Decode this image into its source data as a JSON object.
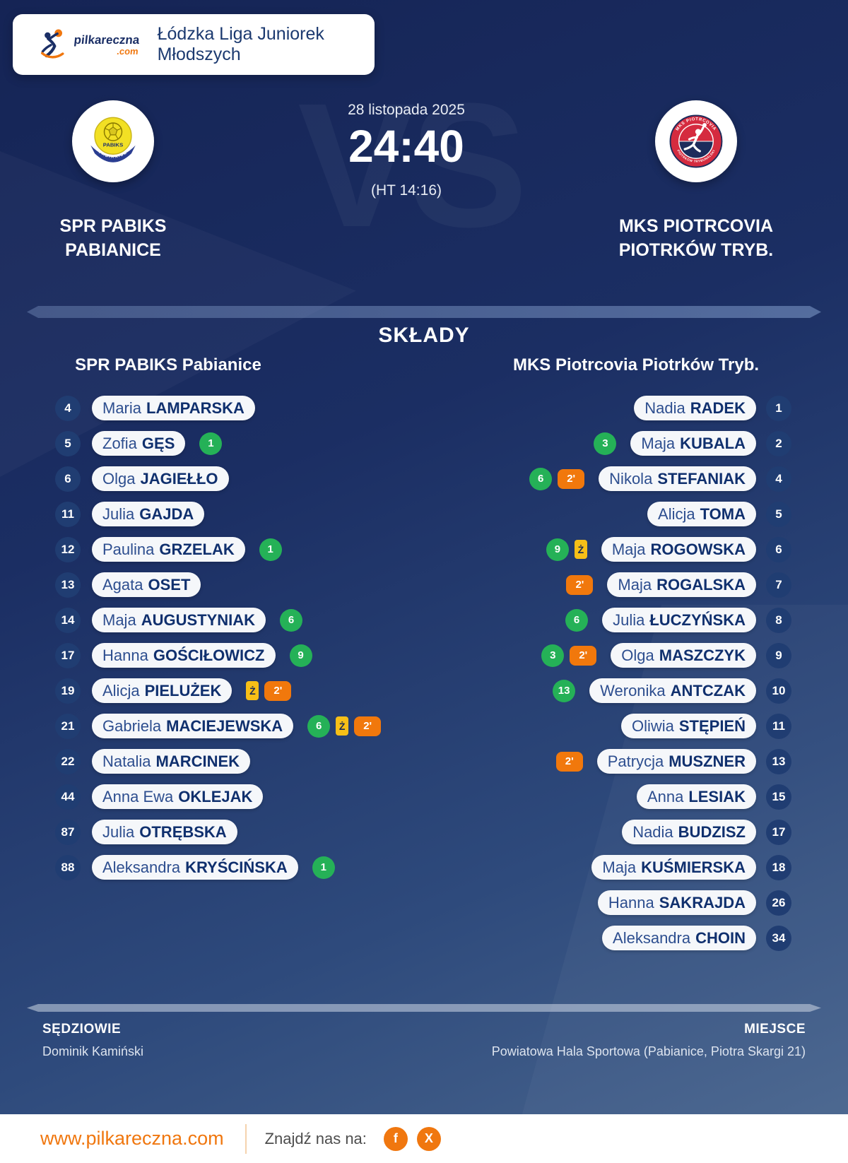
{
  "colors": {
    "accent_orange": "#f0770f",
    "goal_green": "#25b157",
    "yellow_card": "#f7bf17",
    "suspension_orange": "#f1780c",
    "navy_text": "#10306e",
    "background_top": "#152455",
    "background_bottom": "#4a678f"
  },
  "header": {
    "brand_name": "pilkareczna",
    "brand_tld": ".com",
    "league_title": "Łódzka Liga Juniorek Młodszych"
  },
  "match": {
    "date": "28 listopada 2025",
    "score": "24:40",
    "halftime": "(HT 14:16)",
    "vs_watermark": "VS",
    "home": {
      "line1": "SPR PABIKS",
      "line2": "PABIANICE",
      "logo_center_text": "PABIKS",
      "logo_band_text": "PABIANICE"
    },
    "away": {
      "line1": "MKS PIOTRCOVIA",
      "line2": "PIOTRKÓW TRYB.",
      "logo_text_top": "MKS PIOTRCOVIA",
      "logo_text_bottom": "PIOTRKÓW TRYBUNALSKI"
    }
  },
  "lineups": {
    "title": "SKŁADY",
    "home": {
      "header": "SPR PABIKS Pabianice",
      "players": [
        {
          "number": "4",
          "first": "Maria",
          "last": "LAMPARSKA",
          "badges": []
        },
        {
          "number": "5",
          "first": "Zofia",
          "last": "GĘS",
          "badges": [
            {
              "type": "goals",
              "text": "1"
            }
          ]
        },
        {
          "number": "6",
          "first": "Olga",
          "last": "JAGIEŁŁO",
          "badges": []
        },
        {
          "number": "11",
          "first": "Julia",
          "last": "GAJDA",
          "badges": []
        },
        {
          "number": "12",
          "first": "Paulina",
          "last": "GRZELAK",
          "badges": [
            {
              "type": "goals",
              "text": "1"
            }
          ]
        },
        {
          "number": "13",
          "first": "Agata",
          "last": "OSET",
          "badges": []
        },
        {
          "number": "14",
          "first": "Maja",
          "last": "AUGUSTYNIAK",
          "badges": [
            {
              "type": "goals",
              "text": "6"
            }
          ]
        },
        {
          "number": "17",
          "first": "Hanna",
          "last": "GOŚCIŁOWICZ",
          "badges": [
            {
              "type": "goals",
              "text": "9"
            }
          ]
        },
        {
          "number": "19",
          "first": "Alicja",
          "last": "PIELUŻEK",
          "badges": [
            {
              "type": "yellow",
              "text": "Ż"
            },
            {
              "type": "susp",
              "text": "2'"
            }
          ]
        },
        {
          "number": "21",
          "first": "Gabriela",
          "last": "MACIEJEWSKA",
          "badges": [
            {
              "type": "goals",
              "text": "6"
            },
            {
              "type": "yellow",
              "text": "Ż"
            },
            {
              "type": "susp",
              "text": "2'"
            }
          ]
        },
        {
          "number": "22",
          "first": "Natalia",
          "last": "MARCINEK",
          "badges": []
        },
        {
          "number": "44",
          "first": "Anna Ewa",
          "last": "OKLEJAK",
          "badges": []
        },
        {
          "number": "87",
          "first": "Julia",
          "last": "OTRĘBSKA",
          "badges": []
        },
        {
          "number": "88",
          "first": "Aleksandra",
          "last": "KRYŚCIŃSKA",
          "badges": [
            {
              "type": "goals",
              "text": "1"
            }
          ]
        }
      ]
    },
    "away": {
      "header": "MKS Piotrcovia Piotrków Tryb.",
      "players": [
        {
          "number": "1",
          "first": "Nadia",
          "last": "RADEK",
          "badges": []
        },
        {
          "number": "2",
          "first": "Maja",
          "last": "KUBALA",
          "badges": [
            {
              "type": "goals",
              "text": "3"
            }
          ]
        },
        {
          "number": "4",
          "first": "Nikola",
          "last": "STEFANIAK",
          "badges": [
            {
              "type": "goals",
              "text": "6"
            },
            {
              "type": "susp",
              "text": "2'"
            }
          ]
        },
        {
          "number": "5",
          "first": "Alicja",
          "last": "TOMA",
          "badges": []
        },
        {
          "number": "6",
          "first": "Maja",
          "last": "ROGOWSKA",
          "badges": [
            {
              "type": "goals",
              "text": "9"
            },
            {
              "type": "yellow",
              "text": "Ż"
            }
          ]
        },
        {
          "number": "7",
          "first": "Maja",
          "last": "ROGALSKA",
          "badges": [
            {
              "type": "susp",
              "text": "2'"
            }
          ]
        },
        {
          "number": "8",
          "first": "Julia",
          "last": "ŁUCZYŃSKA",
          "badges": [
            {
              "type": "goals",
              "text": "6"
            }
          ]
        },
        {
          "number": "9",
          "first": "Olga",
          "last": "MASZCZYK",
          "badges": [
            {
              "type": "goals",
              "text": "3"
            },
            {
              "type": "susp",
              "text": "2'"
            }
          ]
        },
        {
          "number": "10",
          "first": "Weronika",
          "last": "ANTCZAK",
          "badges": [
            {
              "type": "goals",
              "text": "13"
            }
          ]
        },
        {
          "number": "11",
          "first": "Oliwia",
          "last": "STĘPIEŃ",
          "badges": []
        },
        {
          "number": "13",
          "first": "Patrycja",
          "last": "MUSZNER",
          "badges": [
            {
              "type": "susp",
              "text": "2'"
            }
          ]
        },
        {
          "number": "15",
          "first": "Anna",
          "last": "LESIAK",
          "badges": []
        },
        {
          "number": "17",
          "first": "Nadia",
          "last": "BUDZISZ",
          "badges": []
        },
        {
          "number": "18",
          "first": "Maja",
          "last": "KUŚMIERSKA",
          "badges": []
        },
        {
          "number": "26",
          "first": "Hanna",
          "last": "SAKRAJDA",
          "badges": []
        },
        {
          "number": "34",
          "first": "Aleksandra",
          "last": "CHOIN",
          "badges": []
        }
      ]
    }
  },
  "meta": {
    "referees_label": "SĘDZIOWIE",
    "referees": "Dominik Kamiński",
    "venue_label": "MIEJSCE",
    "venue": "Powiatowa Hala Sportowa (Pabianice, Piotra Skargi 21)"
  },
  "footer": {
    "url": "www.pilkareczna.com",
    "find_us_label": "Znajdź nas na:",
    "social": [
      {
        "name": "facebook",
        "label": "f"
      },
      {
        "name": "x",
        "label": "X"
      }
    ]
  }
}
